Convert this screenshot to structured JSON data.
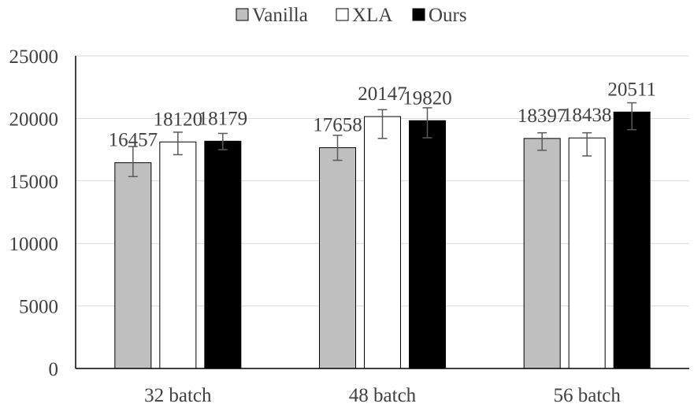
{
  "chart_data": {
    "type": "bar",
    "title": "",
    "xlabel": "",
    "ylabel": "",
    "categories": [
      "32 batch",
      "48 batch",
      "56 batch"
    ],
    "ylim": [
      0,
      25000
    ],
    "yticks": [
      "0",
      "5000",
      "10000",
      "15000",
      "20000",
      "25000"
    ],
    "grid": true,
    "legend_position": "top",
    "error_bars": true,
    "series": [
      {
        "name": "Vanilla",
        "color": "#bfbfbf",
        "values": [
          16457,
          17658,
          18397
        ],
        "labels": [
          "16457",
          "17658",
          "18397"
        ],
        "error_low": [
          15350,
          16650,
          17450
        ],
        "error_high": [
          17750,
          18650,
          18850
        ]
      },
      {
        "name": "XLA",
        "color": "#ffffff",
        "values": [
          18120,
          20147,
          18438
        ],
        "labels": [
          "18120",
          "20147",
          "18438"
        ],
        "error_low": [
          17100,
          18400,
          17000
        ],
        "error_high": [
          18900,
          20700,
          18850
        ]
      },
      {
        "name": "Ours",
        "color": "#000000",
        "values": [
          18179,
          19820,
          20511
        ],
        "labels": [
          "18179",
          "19820",
          "20511"
        ],
        "error_low": [
          17500,
          18450,
          19100
        ],
        "error_high": [
          18800,
          20850,
          21250
        ]
      }
    ]
  }
}
